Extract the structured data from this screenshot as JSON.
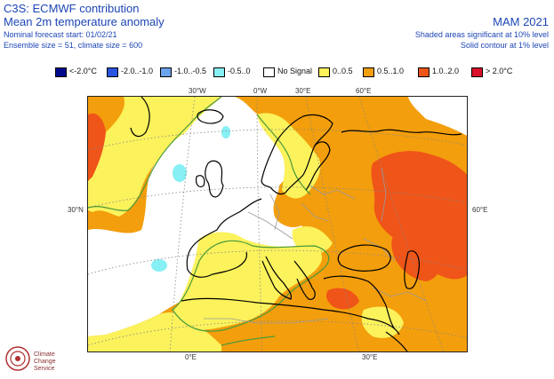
{
  "header": {
    "source": "C3S: ECMWF contribution",
    "title": "Mean 2m temperature anomaly",
    "forecast_start": "Nominal forecast start: 01/02/21",
    "ensemble": "Ensemble size = 51, climate size = 600",
    "season": "MAM 2021",
    "shaded_note": "Shaded areas significant at 10% level",
    "contour_note": "Solid contour at 1% level"
  },
  "legend": [
    {
      "label": "<-2.0°C",
      "color": "#000a8c"
    },
    {
      "label": "-2.0..-1.0",
      "color": "#2a55e0"
    },
    {
      "label": "-1.0..-0.5",
      "color": "#6aa4ec"
    },
    {
      "label": "-0.5..0",
      "color": "#86f0f4"
    },
    {
      "label": "No Signal",
      "color": "#ffffff"
    },
    {
      "label": "0..0.5",
      "color": "#fbf25c"
    },
    {
      "label": "0.5..1.0",
      "color": "#f39e0c"
    },
    {
      "label": "1.0..2.0",
      "color": "#ef5418"
    },
    {
      "label": "> 2.0°C",
      "color": "#d9102a"
    }
  ],
  "map": {
    "lon_labels_top": [
      "30°W",
      "0°W",
      "30°E",
      "60°E"
    ],
    "lon_labels_bottom": [
      "0°E",
      "30°E"
    ],
    "lat_label_left": "30°N",
    "lat_label_right": "60°E",
    "colors": {
      "no_signal": "#ffffff",
      "weak_positive": "#fbf25c",
      "moderate_positive": "#f39e0c",
      "strong_positive": "#ef5418",
      "weak_negative": "#86f0f4",
      "contour": "#4a9a3a",
      "coast": "#000000",
      "border": "#9a9a9a",
      "grid": "#888888"
    }
  },
  "logo": {
    "org": "Climate Change Service",
    "icon": "copernicus-climate-logo"
  }
}
